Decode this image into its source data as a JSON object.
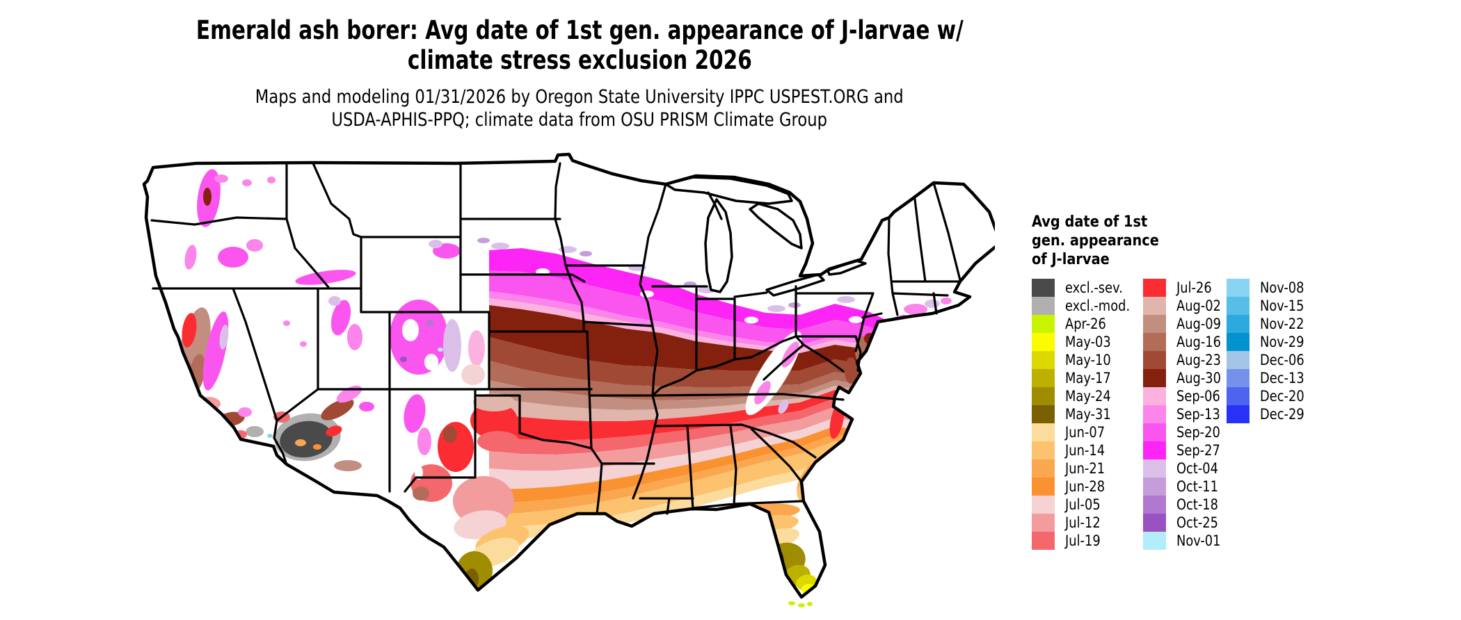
{
  "title": {
    "line1": "Emerald ash borer: Avg date of 1st gen. appearance of J-larvae w/",
    "line2": "climate stress exclusion 2026"
  },
  "subtitle": {
    "line1": "Maps and modeling 01/31/2026 by Oregon State University IPPC USPEST.ORG and",
    "line2": "USDA-APHIS-PPQ; climate data from OSU PRISM Climate Group"
  },
  "map": {
    "type": "choropleth",
    "region_shown": "contiguous United States"
  },
  "legend": {
    "title_lines": [
      "Avg date of 1st",
      "gen. appearance",
      "of J-larvae"
    ],
    "columns": [
      {
        "items": [
          {
            "label": "excl.-sev.",
            "color": "excl_sev"
          },
          {
            "label": "excl.-mod.",
            "color": "excl_mod"
          },
          {
            "label": "Apr-26",
            "color": "apr26"
          },
          {
            "label": "May-03",
            "color": "may03"
          },
          {
            "label": "May-10",
            "color": "may10"
          },
          {
            "label": "May-17",
            "color": "may17"
          },
          {
            "label": "May-24",
            "color": "may24"
          },
          {
            "label": "May-31",
            "color": "may31"
          },
          {
            "label": "Jun-07",
            "color": "jun07"
          },
          {
            "label": "Jun-14",
            "color": "jun14"
          },
          {
            "label": "Jun-21",
            "color": "jun21"
          },
          {
            "label": "Jun-28",
            "color": "jun28"
          },
          {
            "label": "Jul-05",
            "color": "jul05"
          },
          {
            "label": "Jul-12",
            "color": "jul12"
          },
          {
            "label": "Jul-19",
            "color": "jul19"
          }
        ]
      },
      {
        "items": [
          {
            "label": "Jul-26",
            "color": "jul26"
          },
          {
            "label": "Aug-02",
            "color": "aug02"
          },
          {
            "label": "Aug-09",
            "color": "aug09"
          },
          {
            "label": "Aug-16",
            "color": "aug16"
          },
          {
            "label": "Aug-23",
            "color": "aug23"
          },
          {
            "label": "Aug-30",
            "color": "aug30"
          },
          {
            "label": "Sep-06",
            "color": "sep06"
          },
          {
            "label": "Sep-13",
            "color": "sep13"
          },
          {
            "label": "Sep-20",
            "color": "sep20"
          },
          {
            "label": "Sep-27",
            "color": "sep27"
          },
          {
            "label": "Oct-04",
            "color": "oct04"
          },
          {
            "label": "Oct-11",
            "color": "oct11"
          },
          {
            "label": "Oct-18",
            "color": "oct18"
          },
          {
            "label": "Oct-25",
            "color": "oct25"
          },
          {
            "label": "Nov-01",
            "color": "nov01"
          }
        ]
      },
      {
        "items": [
          {
            "label": "Nov-08",
            "color": "nov08"
          },
          {
            "label": "Nov-15",
            "color": "nov15"
          },
          {
            "label": "Nov-22",
            "color": "nov22"
          },
          {
            "label": "Nov-29",
            "color": "nov29"
          },
          {
            "label": "Dec-06",
            "color": "dec06"
          },
          {
            "label": "Dec-13",
            "color": "dec13"
          },
          {
            "label": "Dec-20",
            "color": "dec20"
          },
          {
            "label": "Dec-29",
            "color": "dec29"
          }
        ]
      }
    ]
  },
  "colors": {
    "white": "#ffffff",
    "excl_sev": "#4a4a4a",
    "excl_mod": "#b0b0b0",
    "apr26": "#c8f400",
    "may03": "#fcfc00",
    "may10": "#dcd900",
    "may17": "#bcb000",
    "may24": "#a08c00",
    "may31": "#7a6000",
    "jun07": "#fcdc9c",
    "jun14": "#fcc26e",
    "jun21": "#fba750",
    "jun28": "#fa9232",
    "jul05": "#f5d2d4",
    "jul12": "#f29c9e",
    "jul19": "#f4676c",
    "jul26": "#fa2d32",
    "aug02": "#e0b5ab",
    "aug09": "#c28e80",
    "aug16": "#b26c58",
    "aug23": "#a04a35",
    "aug30": "#84200e",
    "sep06": "#fbb2de",
    "sep13": "#fb85ea",
    "sep20": "#fb55f0",
    "sep27": "#fc25f5",
    "oct04": "#dac0e8",
    "oct11": "#c59dda",
    "oct18": "#b078ce",
    "oct25": "#9a52c0",
    "nov01": "#b3ecfb",
    "nov08": "#88d4f2",
    "nov15": "#58bee8",
    "nov22": "#2caade",
    "nov29": "#0292ce",
    "dec06": "#a4c6e6",
    "dec13": "#7592ea",
    "dec20": "#4d64f0",
    "dec29": "#2832f6"
  }
}
